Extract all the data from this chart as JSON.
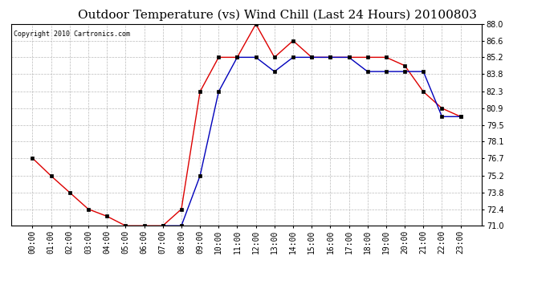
{
  "title": "Outdoor Temperature (vs) Wind Chill (Last 24 Hours) 20100803",
  "copyright": "Copyright 2010 Cartronics.com",
  "x_labels": [
    "00:00",
    "01:00",
    "02:00",
    "03:00",
    "04:00",
    "05:00",
    "06:00",
    "07:00",
    "08:00",
    "09:00",
    "10:00",
    "11:00",
    "12:00",
    "13:00",
    "14:00",
    "15:00",
    "16:00",
    "17:00",
    "18:00",
    "19:00",
    "20:00",
    "21:00",
    "22:00",
    "23:00"
  ],
  "temp_red": [
    76.7,
    75.2,
    73.8,
    72.4,
    71.8,
    71.0,
    71.0,
    71.0,
    72.4,
    82.3,
    85.2,
    85.2,
    88.0,
    85.2,
    86.6,
    85.2,
    85.2,
    85.2,
    85.2,
    85.2,
    84.5,
    82.3,
    80.9,
    80.2
  ],
  "wind_chill_blue": [
    null,
    null,
    null,
    null,
    null,
    null,
    null,
    71.0,
    71.0,
    75.2,
    82.3,
    85.2,
    85.2,
    84.0,
    85.2,
    85.2,
    85.2,
    85.2,
    84.0,
    84.0,
    84.0,
    84.0,
    80.2,
    80.2
  ],
  "ylim": [
    71.0,
    88.0
  ],
  "yticks": [
    71.0,
    72.4,
    73.8,
    75.2,
    76.7,
    78.1,
    79.5,
    80.9,
    82.3,
    83.8,
    85.2,
    86.6,
    88.0
  ],
  "red_color": "#DD0000",
  "blue_color": "#0000BB",
  "grid_color": "#BBBBBB",
  "bg_color": "#FFFFFF",
  "title_fontsize": 11,
  "tick_fontsize": 7,
  "copyright_fontsize": 6
}
